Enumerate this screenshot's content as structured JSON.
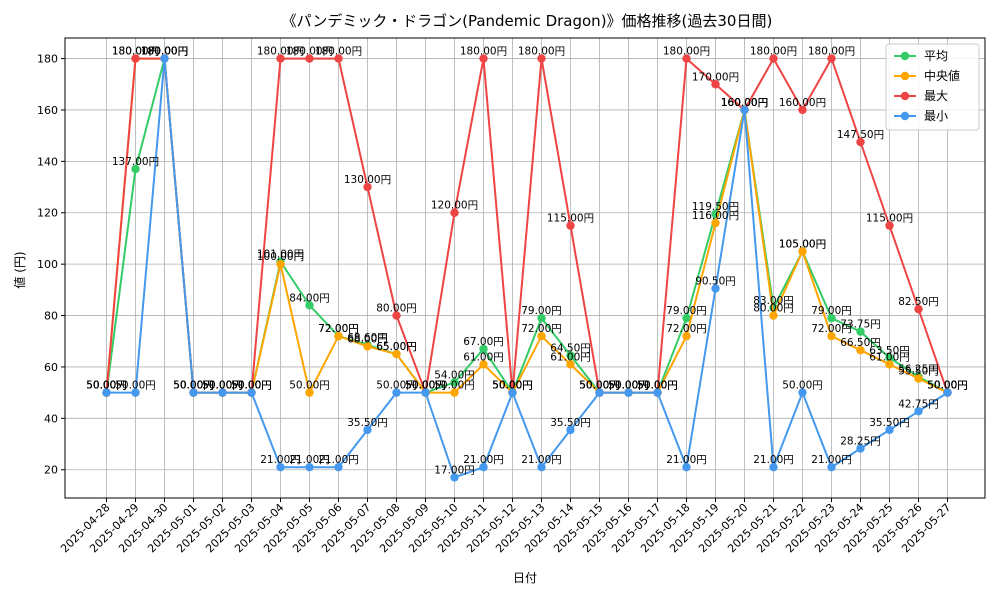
{
  "chart_data": {
    "type": "line",
    "title": "《パンデミック・ドラゴン(Pandemic Dragon)》価格推移(過去30日間)",
    "xlabel": "日付",
    "ylabel": "値 (円)",
    "unit_suffix": "円",
    "ylim": [
      9,
      188
    ],
    "yticks": [
      20,
      40,
      60,
      80,
      100,
      120,
      140,
      160,
      180
    ],
    "grid": true,
    "legend_position": "top-right",
    "categories": [
      "2025-04-28",
      "2025-04-29",
      "2025-04-30",
      "2025-05-01",
      "2025-05-02",
      "2025-05-03",
      "2025-05-04",
      "2025-05-05",
      "2025-05-06",
      "2025-05-07",
      "2025-05-08",
      "2025-05-09",
      "2025-05-10",
      "2025-05-11",
      "2025-05-12",
      "2025-05-13",
      "2025-05-14",
      "2025-05-15",
      "2025-05-16",
      "2025-05-17",
      "2025-05-18",
      "2025-05-19",
      "2025-05-20",
      "2025-05-21",
      "2025-05-22",
      "2025-05-23",
      "2025-05-24",
      "2025-05-25",
      "2025-05-26",
      "2025-05-27"
    ],
    "series": [
      {
        "name": "平均",
        "color": "#33cc66",
        "values": [
          50,
          137,
          180,
          50,
          50,
          50,
          101,
          84,
          72,
          68.6,
          65,
          50,
          54,
          67,
          50,
          79,
          64.5,
          50,
          50,
          50,
          79,
          119.5,
          160,
          83,
          105,
          79,
          73.75,
          63.5,
          56.25,
          50
        ],
        "labels": true
      },
      {
        "name": "中央値",
        "color": "#ffa500",
        "values": [
          50,
          180,
          180,
          50,
          50,
          50,
          100,
          50,
          72,
          68,
          65,
          50,
          50,
          61,
          50,
          72,
          61,
          50,
          50,
          50,
          72,
          116,
          160,
          80,
          105,
          72,
          66.5,
          61,
          55.5,
          50
        ],
        "labels": true
      },
      {
        "name": "最大",
        "color": "#ee4444",
        "values": [
          50,
          180,
          180,
          50,
          50,
          50,
          180,
          180,
          180,
          130,
          80,
          50,
          120,
          180,
          50,
          180,
          115,
          50,
          50,
          50,
          180,
          170,
          160,
          180,
          160,
          180,
          147.5,
          115,
          82.5,
          50
        ],
        "labels": true
      },
      {
        "name": "最小",
        "color": "#4499ee",
        "values": [
          50,
          50,
          180,
          50,
          50,
          50,
          21,
          21,
          21,
          35.5,
          50,
          50,
          17,
          21,
          50,
          21,
          35.5,
          50,
          50,
          50,
          21,
          90.5,
          160,
          21,
          50,
          21,
          28.25,
          35.5,
          42.75,
          50
        ],
        "labels": true
      }
    ]
  }
}
